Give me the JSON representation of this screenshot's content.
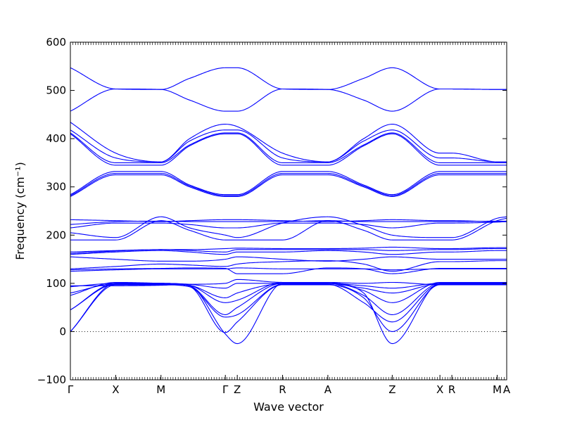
{
  "chart_data": {
    "type": "line",
    "title": "",
    "xlabel": "Wave vector",
    "ylabel": "Frequency (cm⁻¹)",
    "ylim": [
      -100,
      600
    ],
    "y_ticks": [
      -100,
      0,
      100,
      200,
      300,
      400,
      500,
      600
    ],
    "xlim": [
      0,
      18.3
    ],
    "high_symmetry_points": [
      {
        "label": "Γ",
        "x": 0.0
      },
      {
        "label": "X",
        "x": 1.9
      },
      {
        "label": "M",
        "x": 3.8
      },
      {
        "label": "Γ",
        "x": 6.5
      },
      {
        "label": "Z",
        "x": 7.0
      },
      {
        "label": "R",
        "x": 8.9
      },
      {
        "label": "A",
        "x": 10.8
      },
      {
        "label": "Z",
        "x": 13.5
      },
      {
        "label": "X",
        "x": 15.5
      },
      {
        "label": "R",
        "x": 16.0
      },
      {
        "label": "M",
        "x": 17.9
      },
      {
        "label": "A",
        "x": 18.3
      }
    ],
    "reference_line": {
      "y": 0,
      "style": "dotted"
    },
    "line_color": "#0000ff",
    "grid": false,
    "legend": "none",
    "x_knots": [
      0.0,
      1.9,
      3.8,
      5.0,
      6.5,
      7.0,
      8.9,
      10.8,
      12.3,
      13.5,
      15.5,
      16.0,
      17.9,
      18.3
    ],
    "series": [
      {
        "values": [
          0,
          100,
          100,
          95,
          -5,
          -25,
          100,
          100,
          80,
          -25,
          100,
          100,
          100,
          100
        ]
      },
      {
        "values": [
          0,
          97,
          97,
          93,
          -2,
          20,
          97,
          97,
          70,
          0,
          97,
          97,
          97,
          97
        ]
      },
      {
        "values": [
          45,
          98,
          98,
          93,
          30,
          35,
          98,
          98,
          60,
          20,
          98,
          98,
          98,
          98
        ]
      },
      {
        "values": [
          45,
          100,
          100,
          95,
          35,
          50,
          100,
          100,
          75,
          35,
          100,
          100,
          100,
          100
        ]
      },
      {
        "values": [
          75,
          102,
          100,
          96,
          60,
          65,
          102,
          102,
          85,
          60,
          102,
          102,
          102,
          102
        ]
      },
      {
        "values": [
          80,
          99,
          99,
          96,
          70,
          80,
          99,
          99,
          90,
          80,
          99,
          99,
          99,
          99
        ]
      },
      {
        "values": [
          93,
          100,
          100,
          98,
          90,
          100,
          100,
          100,
          95,
          90,
          100,
          100,
          100,
          100
        ]
      },
      {
        "values": [
          95,
          95,
          96,
          98,
          100,
          108,
          102,
          102,
          100,
          102,
          97,
          97,
          98,
          98
        ]
      },
      {
        "values": [
          125,
          128,
          130,
          130,
          130,
          132,
          130,
          130,
          130,
          128,
          130,
          130,
          130,
          130
        ]
      },
      {
        "values": [
          128,
          130,
          131,
          132,
          131,
          120,
          120,
          132,
          130,
          120,
          131,
          131,
          131,
          131
        ]
      },
      {
        "values": [
          130,
          135,
          140,
          138,
          135,
          140,
          145,
          147,
          140,
          125,
          145,
          145,
          147,
          147
        ]
      },
      {
        "values": [
          155,
          150,
          146,
          146,
          150,
          155,
          150,
          146,
          150,
          155,
          150,
          150,
          150,
          150
        ]
      },
      {
        "values": [
          160,
          165,
          168,
          165,
          160,
          165,
          165,
          168,
          165,
          160,
          165,
          165,
          168,
          168
        ]
      },
      {
        "values": [
          162,
          167,
          170,
          168,
          165,
          170,
          170,
          170,
          170,
          168,
          170,
          170,
          172,
          172
        ]
      },
      {
        "values": [
          165,
          168,
          170,
          170,
          172,
          173,
          172,
          172,
          173,
          175,
          172,
          172,
          174,
          174
        ]
      },
      {
        "values": [
          190,
          190,
          230,
          210,
          190,
          190,
          190,
          230,
          210,
          190,
          190,
          190,
          230,
          235
        ]
      },
      {
        "values": [
          205,
          195,
          238,
          215,
          200,
          195,
          225,
          238,
          220,
          200,
          195,
          195,
          235,
          238
        ]
      },
      {
        "values": [
          215,
          225,
          225,
          222,
          215,
          215,
          225,
          225,
          222,
          215,
          225,
          225,
          227,
          228
        ]
      },
      {
        "values": [
          222,
          228,
          229,
          228,
          228,
          228,
          228,
          230,
          228,
          228,
          228,
          228,
          229,
          229
        ]
      },
      {
        "values": [
          232,
          230,
          228,
          230,
          232,
          232,
          230,
          228,
          230,
          232,
          230,
          230,
          228,
          228
        ]
      },
      {
        "values": [
          280,
          325,
          325,
          300,
          280,
          280,
          325,
          325,
          300,
          280,
          325,
          325,
          325,
          325
        ]
      },
      {
        "values": [
          282,
          328,
          328,
          302,
          282,
          282,
          328,
          328,
          302,
          282,
          328,
          328,
          328,
          328
        ]
      },
      {
        "values": [
          284,
          332,
          332,
          304,
          284,
          284,
          332,
          332,
          304,
          284,
          332,
          332,
          332,
          332
        ]
      },
      {
        "values": [
          410,
          345,
          345,
          385,
          410,
          410,
          345,
          345,
          385,
          410,
          345,
          345,
          345,
          345
        ]
      },
      {
        "values": [
          412,
          350,
          350,
          387,
          412,
          412,
          350,
          350,
          387,
          412,
          350,
          350,
          350,
          350
        ]
      },
      {
        "values": [
          418,
          360,
          352,
          395,
          418,
          418,
          360,
          352,
          395,
          418,
          360,
          360,
          352,
          352
        ]
      },
      {
        "values": [
          434,
          370,
          352,
          400,
          430,
          425,
          370,
          352,
          400,
          430,
          370,
          370,
          352,
          352
        ]
      },
      {
        "values": [
          457,
          503,
          502,
          480,
          457,
          457,
          503,
          502,
          480,
          457,
          503,
          503,
          502,
          502
        ]
      },
      {
        "values": [
          547,
          503,
          502,
          525,
          547,
          547,
          503,
          502,
          525,
          547,
          503,
          503,
          502,
          502
        ]
      }
    ]
  }
}
